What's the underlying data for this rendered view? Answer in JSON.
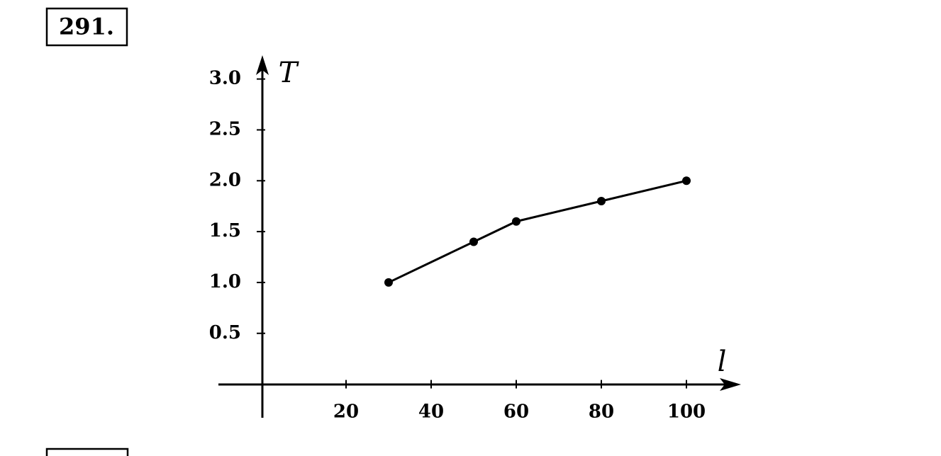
{
  "problem_number": "291.",
  "chart_data": {
    "type": "line",
    "x": [
      30,
      50,
      60,
      80,
      100
    ],
    "values": [
      1.0,
      1.4,
      1.6,
      1.8,
      2.0
    ],
    "color": "#000000",
    "x_label": "l",
    "y_label": "T",
    "xlim": [
      -10,
      112
    ],
    "ylim": [
      -0.33,
      3.22
    ],
    "xticks": [
      20,
      40,
      60,
      80,
      100
    ],
    "yticks": [
      0.5,
      {
        "value": 1,
        "label": "1.0"
      },
      1.5,
      {
        "value": 2,
        "label": "2.0"
      },
      2.5,
      {
        "value": 3,
        "label": "3.0"
      }
    ],
    "grid": false
  }
}
